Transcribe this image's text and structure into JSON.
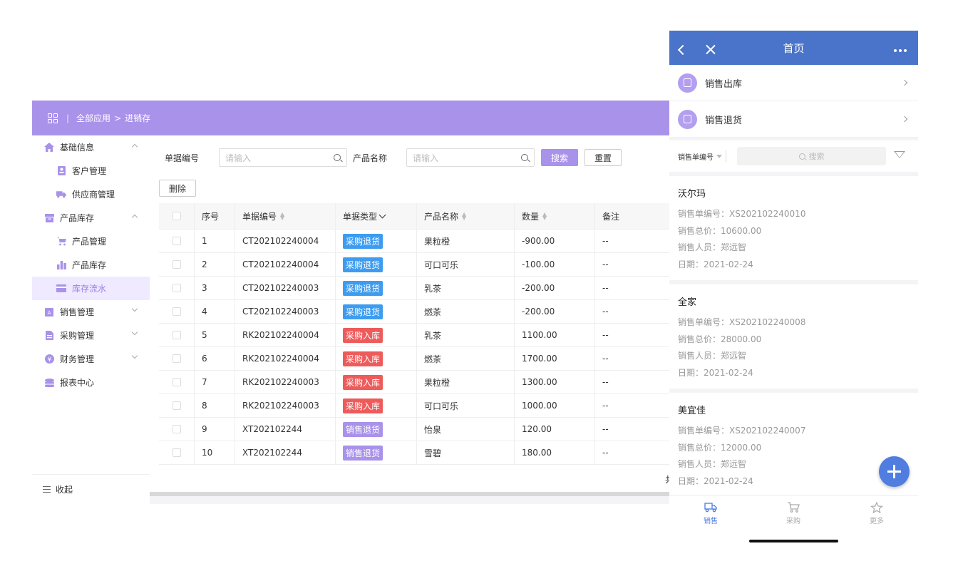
{
  "desktop": {
    "breadcrumb": {
      "root": "全部应用",
      "arrow": ">",
      "current": "进销存",
      "separator": "|"
    },
    "sidebar": {
      "items": [
        {
          "label": "基础信息",
          "type": "group",
          "icon": "home-icon",
          "expanded": true
        },
        {
          "label": "客户管理",
          "type": "sub",
          "icon": "contact-card-icon"
        },
        {
          "label": "供应商管理",
          "type": "sub",
          "icon": "truck-icon"
        },
        {
          "label": "产品库存",
          "type": "group",
          "icon": "box-icon",
          "expanded": true
        },
        {
          "label": "产品管理",
          "type": "sub",
          "icon": "cart-icon"
        },
        {
          "label": "产品库存",
          "type": "sub",
          "icon": "bar-chart-icon"
        },
        {
          "label": "库存流水",
          "type": "sub",
          "icon": "card-icon",
          "active": true
        },
        {
          "label": "销售管理",
          "type": "group",
          "icon": "sales-icon",
          "expanded": false
        },
        {
          "label": "采购管理",
          "type": "group",
          "icon": "document-icon",
          "expanded": false
        },
        {
          "label": "财务管理",
          "type": "group",
          "icon": "yen-icon",
          "expanded": false
        },
        {
          "label": "报表中心",
          "type": "group",
          "icon": "database-icon"
        }
      ],
      "collapse_label": "收起"
    },
    "filters": {
      "order_no_label": "单据编号",
      "order_no_placeholder": "请输入",
      "product_label": "产品名称",
      "product_placeholder": "请输入",
      "search_button": "搜索",
      "reset_button": "重置",
      "delete_button": "删除"
    },
    "table": {
      "headers": [
        "序号",
        "单据编号",
        "单据类型",
        "产品名称",
        "数量",
        "备注"
      ],
      "rows": [
        {
          "no": "1",
          "code": "CT202102240004",
          "type": "采购退货",
          "type_color": "#3d9cf0",
          "product": "果粒橙",
          "qty": "-900.00",
          "note": "--"
        },
        {
          "no": "2",
          "code": "CT202102240004",
          "type": "采购退货",
          "type_color": "#3d9cf0",
          "product": "可口可乐",
          "qty": "-100.00",
          "note": "--"
        },
        {
          "no": "3",
          "code": "CT202102240003",
          "type": "采购退货",
          "type_color": "#3d9cf0",
          "product": "乳茶",
          "qty": "-200.00",
          "note": "--"
        },
        {
          "no": "4",
          "code": "CT202102240003",
          "type": "采购退货",
          "type_color": "#3d9cf0",
          "product": "燃茶",
          "qty": "-200.00",
          "note": "--"
        },
        {
          "no": "5",
          "code": "RK202102240004",
          "type": "采购入库",
          "type_color": "#ee5b5b",
          "product": "乳茶",
          "qty": "1100.00",
          "note": "--"
        },
        {
          "no": "6",
          "code": "RK202102240004",
          "type": "采购入库",
          "type_color": "#ee5b5b",
          "product": "燃茶",
          "qty": "1700.00",
          "note": "--"
        },
        {
          "no": "7",
          "code": "RK202102240003",
          "type": "采购入库",
          "type_color": "#ee5b5b",
          "product": "果粒橙",
          "qty": "1300.00",
          "note": "--"
        },
        {
          "no": "8",
          "code": "RK202102240003",
          "type": "采购入库",
          "type_color": "#ee5b5b",
          "product": "可口可乐",
          "qty": "1000.00",
          "note": "--"
        },
        {
          "no": "9",
          "code": "XT202102244",
          "type": "销售退货",
          "type_color": "#a992ea",
          "product": "怡泉",
          "qty": "120.00",
          "note": "--"
        },
        {
          "no": "10",
          "code": "XT202102244",
          "type": "销售退货",
          "type_color": "#a992ea",
          "product": "雪碧",
          "qty": "180.00",
          "note": "--"
        }
      ],
      "footer_total_partial": "共"
    },
    "accent_color": "#a992ea"
  },
  "mobile": {
    "header_title": "首页",
    "menu": [
      {
        "label": "销售出库",
        "icon": "document-icon"
      },
      {
        "label": "销售退货",
        "icon": "document-stack-icon"
      }
    ],
    "filter": {
      "field": "销售单编号",
      "search_placeholder": "搜索"
    },
    "cards": [
      {
        "name": "沃尔玛",
        "order": "销售单编号：XS202102240010",
        "total": "销售总价：10600.00",
        "staff": "销售人员：郑远智",
        "date": "日期：2021-02-24"
      },
      {
        "name": "全家",
        "order": "销售单编号：XS202102240008",
        "total": "销售总价：28000.00",
        "staff": "销售人员：郑远智",
        "date": "日期：2021-02-24"
      },
      {
        "name": "美宜佳",
        "order": "销售单编号：XS202102240007",
        "total": "销售总价：12000.00",
        "staff": "销售人员：郑远智",
        "date": "日期：2021-02-24"
      }
    ],
    "tabs": [
      {
        "label": "销售",
        "icon": "truck-icon",
        "active": true
      },
      {
        "label": "采购",
        "icon": "cart-icon"
      },
      {
        "label": "更多",
        "icon": "star-icon"
      }
    ],
    "header_color": "#4a74c9"
  }
}
